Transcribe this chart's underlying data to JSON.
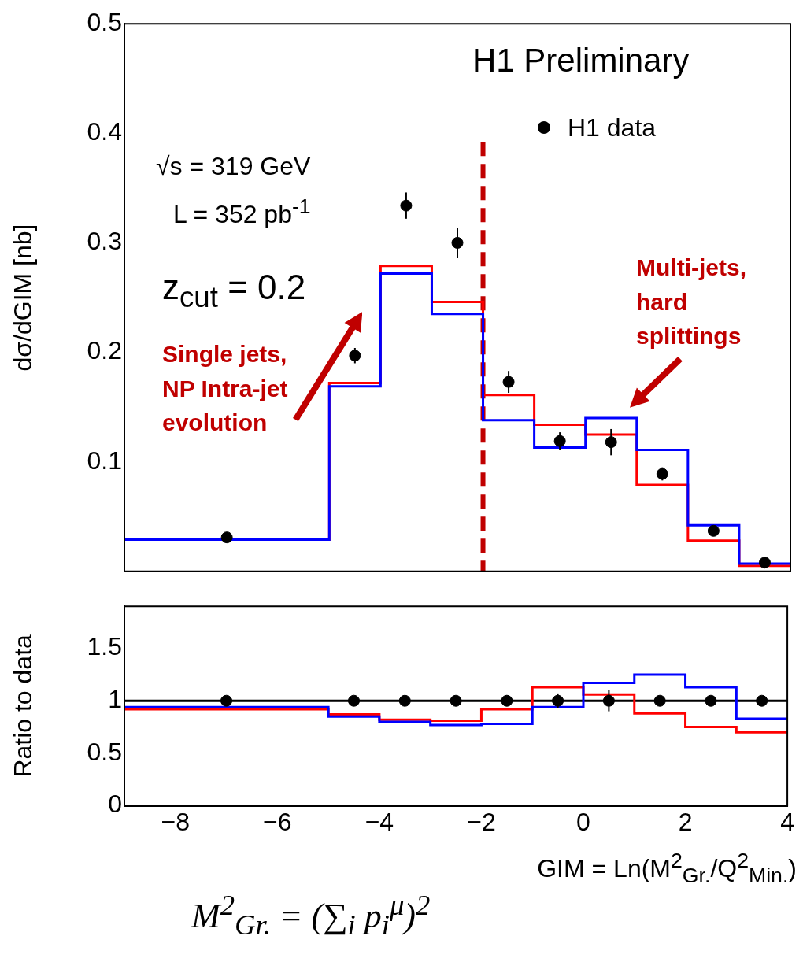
{
  "chart_data": [
    {
      "type": "histogram",
      "title": "H1 Preliminary",
      "ylabel": "dσ/dGIM [nb]",
      "bins": [
        -9,
        -5,
        -4,
        -3,
        -2,
        -1,
        0,
        1,
        2,
        3,
        4
      ],
      "series": [
        {
          "color": "#0000ff",
          "values": [
            0.029,
            0.169,
            0.272,
            0.235,
            0.138,
            0.113,
            0.14,
            0.111,
            0.042,
            0.007
          ]
        },
        {
          "color": "#ff0000",
          "values": [
            0.029,
            0.172,
            0.279,
            0.246,
            0.161,
            0.134,
            0.125,
            0.079,
            0.028,
            0.005
          ]
        },
        {
          "type": "scatter",
          "name": "H1 data",
          "color": "#000000",
          "x": [
            -7,
            -4.5,
            -3.5,
            -2.5,
            -1.5,
            -0.5,
            0.5,
            1.5,
            2.5,
            3.5
          ],
          "values": [
            0.031,
            0.197,
            0.334,
            0.3,
            0.173,
            0.119,
            0.118,
            0.089,
            0.037,
            0.008
          ],
          "errors": [
            0.003,
            0.007,
            0.012,
            0.014,
            0.01,
            0.008,
            0.012,
            0.006,
            0.004,
            0.002
          ]
        }
      ],
      "marker": "circle",
      "xlim": [
        -9,
        4
      ],
      "ylim": [
        0,
        0.5
      ],
      "yticks": [
        0.1,
        0.2,
        0.3,
        0.4,
        0.5
      ],
      "tick_labels": "y",
      "grid": false,
      "legend": "top right",
      "ref_lines": [
        {
          "axis": "x",
          "value": -2,
          "color": "#c00000",
          "line_style": "dashed"
        }
      ],
      "annotations": [
        "√s = 319 GeV",
        "L = 352 pb$^{-1}$",
        "z$_{cut}$ = 0.2",
        "Single jets,\nNP Intra-jet\nevolution",
        "Multi-jets,\nhard\nsplittings"
      ]
    },
    {
      "type": "histogram",
      "ylabel": "Ratio to data",
      "xlabel": "GIM = Ln(M$^{2}$$_{Gr.}$/Q$^{2}$$_{Min.}$)",
      "bins": [
        -9,
        -5,
        -4,
        -3,
        -2,
        -1,
        0,
        1,
        2,
        3,
        4
      ],
      "series": [
        {
          "color": "#0000ff",
          "values": [
            0.94,
            0.85,
            0.8,
            0.77,
            0.78,
            0.94,
            1.17,
            1.25,
            1.13,
            0.83
          ]
        },
        {
          "color": "#ff0000",
          "values": [
            0.92,
            0.87,
            0.82,
            0.81,
            0.92,
            1.13,
            1.06,
            0.88,
            0.75,
            0.7
          ]
        },
        {
          "type": "scatter",
          "color": "#000000",
          "x": [
            -7,
            -4.5,
            -3.5,
            -2.5,
            -1.5,
            -0.5,
            0.5,
            1.5,
            2.5,
            3.5
          ],
          "values": [
            1,
            1,
            1,
            1,
            1,
            1,
            1,
            1,
            1,
            1
          ],
          "errors": [
            0.02,
            0.02,
            0.02,
            0.03,
            0.05,
            0.07,
            0.1,
            0.03,
            0.03,
            0.03
          ]
        }
      ],
      "marker": "circle",
      "xlim": [
        -9,
        4
      ],
      "xticks": [
        -8,
        -6,
        -4,
        -2,
        0,
        2,
        4
      ],
      "ylim": [
        0,
        1.9
      ],
      "yticks": [
        0,
        0.5,
        1,
        1.5
      ],
      "grid": false,
      "ref_lines": [
        {
          "axis": "y",
          "value": 1,
          "color": "#000000",
          "line_style": "solid"
        }
      ],
      "annotations": [
        "M$^{2}$$_{Gr.}$ = (∑$_{i}$ p$_{i}$$^{μ}$)$^{2}$"
      ]
    }
  ]
}
